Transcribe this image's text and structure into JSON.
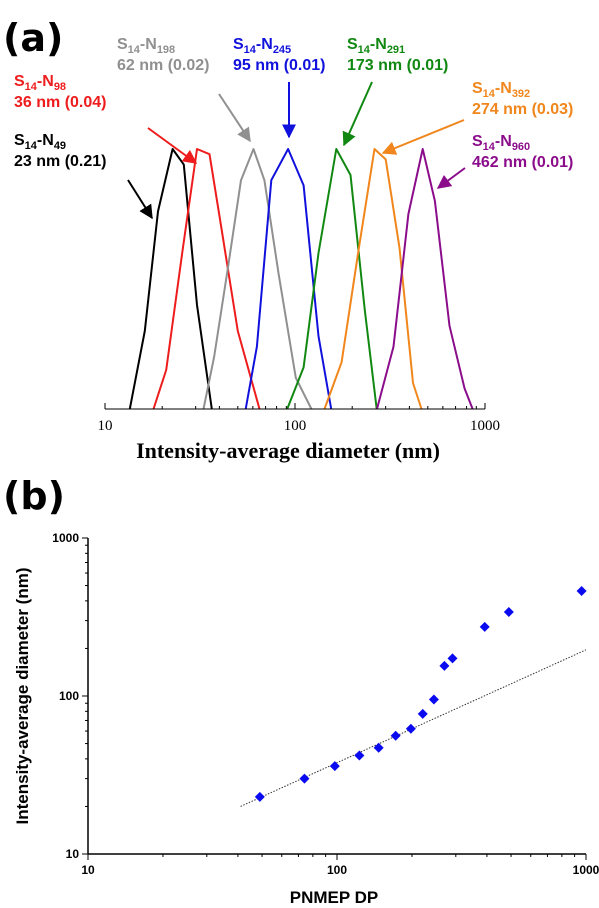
{
  "panel_a": {
    "label": "(a)",
    "chart_data": {
      "type": "line",
      "xlabel": "Intensity-average diameter (nm)",
      "ylabel": "",
      "xscale": "log",
      "xlim": [
        10,
        1000
      ],
      "x_ticks": [
        "10",
        "100",
        "1000"
      ],
      "ylim": [
        0,
        1
      ],
      "grid": false,
      "series": [
        {
          "name_main": "S",
          "name_sub1": "14",
          "name_mid": "-N",
          "name_sub2": "49",
          "stats": "23 nm (0.21)",
          "color": "#000000",
          "x": [
            13.5,
            16.2,
            19.0,
            22.7,
            26.0,
            30.5,
            36.5
          ],
          "y": [
            0.0,
            0.3,
            0.76,
            1.0,
            0.94,
            0.4,
            0.0
          ]
        },
        {
          "name_main": "S",
          "name_sub1": "14",
          "name_mid": "-N",
          "name_sub2": "98",
          "stats": "36 nm (0.04)",
          "color": "#ee1c1c",
          "x": [
            18.0,
            21.0,
            25.5,
            30.5,
            35.5,
            40.5,
            50.0,
            65.0
          ],
          "y": [
            0.0,
            0.15,
            0.6,
            1.0,
            0.98,
            0.72,
            0.3,
            0.0
          ]
        },
        {
          "name_main": "S",
          "name_sub1": "14",
          "name_mid": "-N",
          "name_sub2": "198",
          "stats": "62 nm (0.02)",
          "color": "#909090",
          "x": [
            33.0,
            37.5,
            44.5,
            52.0,
            60.5,
            69.0,
            82.0,
            101.0,
            122.0
          ],
          "y": [
            0.0,
            0.2,
            0.55,
            0.88,
            1.0,
            0.88,
            0.52,
            0.12,
            0.0
          ]
        },
        {
          "name_main": "S",
          "name_sub1": "14",
          "name_mid": "-N",
          "name_sub2": "245",
          "stats": "95 nm (0.01)",
          "color": "#1111dd",
          "x": [
            55.0,
            63.0,
            75.0,
            92.0,
            111.0,
            133.0,
            155.0
          ],
          "y": [
            0.0,
            0.24,
            0.88,
            1.0,
            0.86,
            0.28,
            0.0
          ]
        },
        {
          "name_main": "S",
          "name_sub1": "14",
          "name_mid": "-N",
          "name_sub2": "291",
          "stats": "173 nm (0.01)",
          "color": "#118811",
          "x": [
            91.0,
            111.0,
            133.0,
            165.0,
            196.0,
            233.0,
            269.0
          ],
          "y": [
            0.0,
            0.16,
            0.6,
            1.0,
            0.9,
            0.38,
            0.0
          ]
        },
        {
          "name_main": "S",
          "name_sub1": "14",
          "name_mid": "-N",
          "name_sub2": "392",
          "stats": "274 nm (0.03)",
          "color": "#f0861c",
          "x": [
            143.0,
            176.0,
            217.0,
            262.0,
            300.0,
            355.0,
            418.0,
            463.0
          ],
          "y": [
            0.0,
            0.18,
            0.62,
            1.0,
            0.96,
            0.62,
            0.1,
            0.0
          ]
        },
        {
          "name_main": "S",
          "name_sub1": "14",
          "name_mid": "-N",
          "name_sub2": "960",
          "stats": "462 nm (0.01)",
          "color": "#8b0d8b",
          "x": [
            270.0,
            330.0,
            395.0,
            470.0,
            545.0,
            650.0,
            780.0,
            860.0
          ],
          "y": [
            0.0,
            0.24,
            0.75,
            1.0,
            0.8,
            0.32,
            0.08,
            0.0
          ]
        }
      ]
    }
  },
  "panel_b": {
    "label": "(b)",
    "chart_data": {
      "type": "scatter",
      "xlabel": "PNMEP DP",
      "ylabel": "Intensity-average diameter (nm)",
      "xscale": "log",
      "yscale": "log",
      "xlim": [
        10,
        1000
      ],
      "ylim": [
        10,
        1000
      ],
      "x_ticks": [
        "10",
        "100",
        "1000"
      ],
      "y_ticks": [
        "10",
        "100",
        "1000"
      ],
      "grid": false,
      "marker_color": "#0a0af0",
      "x": [
        49,
        74,
        98,
        123,
        147,
        172,
        198,
        221,
        245,
        270,
        291,
        392,
        490,
        960
      ],
      "y": [
        23,
        30,
        36,
        42,
        47,
        56,
        62,
        77,
        95,
        155,
        173,
        274,
        340,
        462
      ],
      "trendline": {
        "x": [
          41,
          1000
        ],
        "y": [
          20,
          196
        ],
        "style": "dotted",
        "color": "#333333"
      }
    }
  }
}
